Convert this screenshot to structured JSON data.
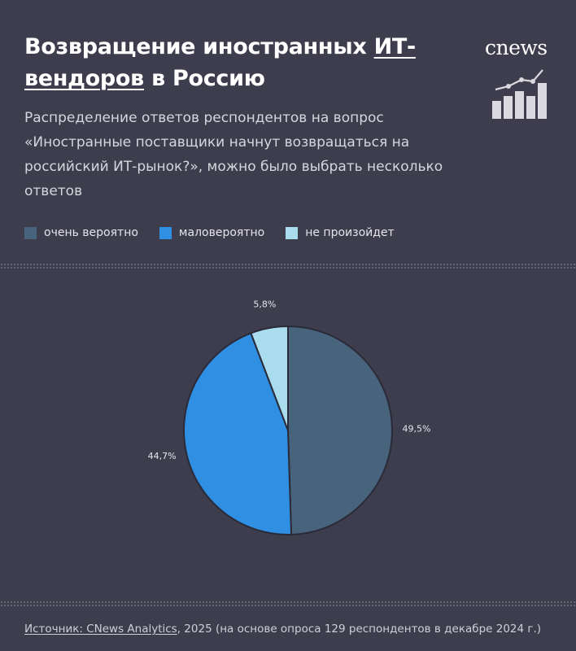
{
  "header": {
    "title_part1": "Возвращение иностранных ",
    "title_link1": "ИТ-вендоров",
    "title_part2": " в Россию",
    "subtitle": "Распределение ответов респондентов на вопрос «Иностранные поставщики начнут возвращаться на российский ИТ-рынок?», можно было выбрать несколько ответов",
    "logo": "cnews",
    "logo_icon": "bar-chart-trend-icon"
  },
  "colors": {
    "background": "#3d3d4d",
    "very_likely": "#48647d",
    "unlikely": "#2f8fe3",
    "wont_happen": "#a9dcec"
  },
  "chart_data": {
    "type": "pie",
    "title": "",
    "labels": [
      "очень вероятно",
      "маловероятно",
      "не произойдет"
    ],
    "values": [
      49.5,
      44.7,
      5.8
    ],
    "value_labels": [
      "49,5%",
      "44,7%",
      "5,8%"
    ],
    "colors": [
      "#48647d",
      "#2f8fe3",
      "#a9dcec"
    ],
    "legend_position": "top-left"
  },
  "footer": {
    "source_link": "Источник: CNews Analytics",
    "source_rest": ", 2025 (на основе опроса 129 респондентов в декабре 2024 г.)"
  }
}
